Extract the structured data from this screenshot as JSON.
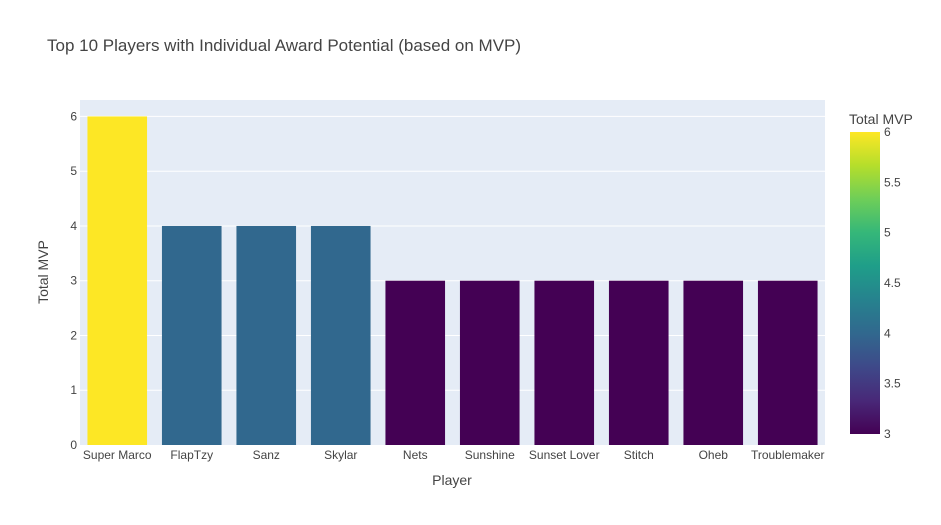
{
  "chart_data": {
    "type": "bar",
    "title": "Top 10 Players with Individual Award Potential (based on MVP)",
    "xlabel": "Player",
    "ylabel": "Total MVP",
    "categories": [
      "Super Marco",
      "FlapTzy",
      "Sanz",
      "Skylar",
      "Nets",
      "Sunshine",
      "Sunset Lover",
      "Stitch",
      "Oheb",
      "Troublemaker"
    ],
    "values": [
      6,
      4,
      4,
      4,
      3,
      3,
      3,
      3,
      3,
      3
    ],
    "ylim": [
      0,
      6.3
    ],
    "yticks": [
      0,
      1,
      2,
      3,
      4,
      5,
      6
    ],
    "grid": true,
    "legend": "none",
    "colorbar": {
      "title": "Total MVP",
      "range": [
        3,
        6
      ],
      "ticks": [
        "3",
        "3.5",
        "4",
        "4.5",
        "5",
        "5.5",
        "6"
      ],
      "colorscale": "Viridis",
      "placement": "right"
    },
    "colors": {
      "plot_bg": "#e5ecf6",
      "grid": "#ffffff",
      "text": "#444444",
      "bar_6": "#fde725",
      "bar_4": "#31688e",
      "bar_3": "#440154"
    }
  }
}
